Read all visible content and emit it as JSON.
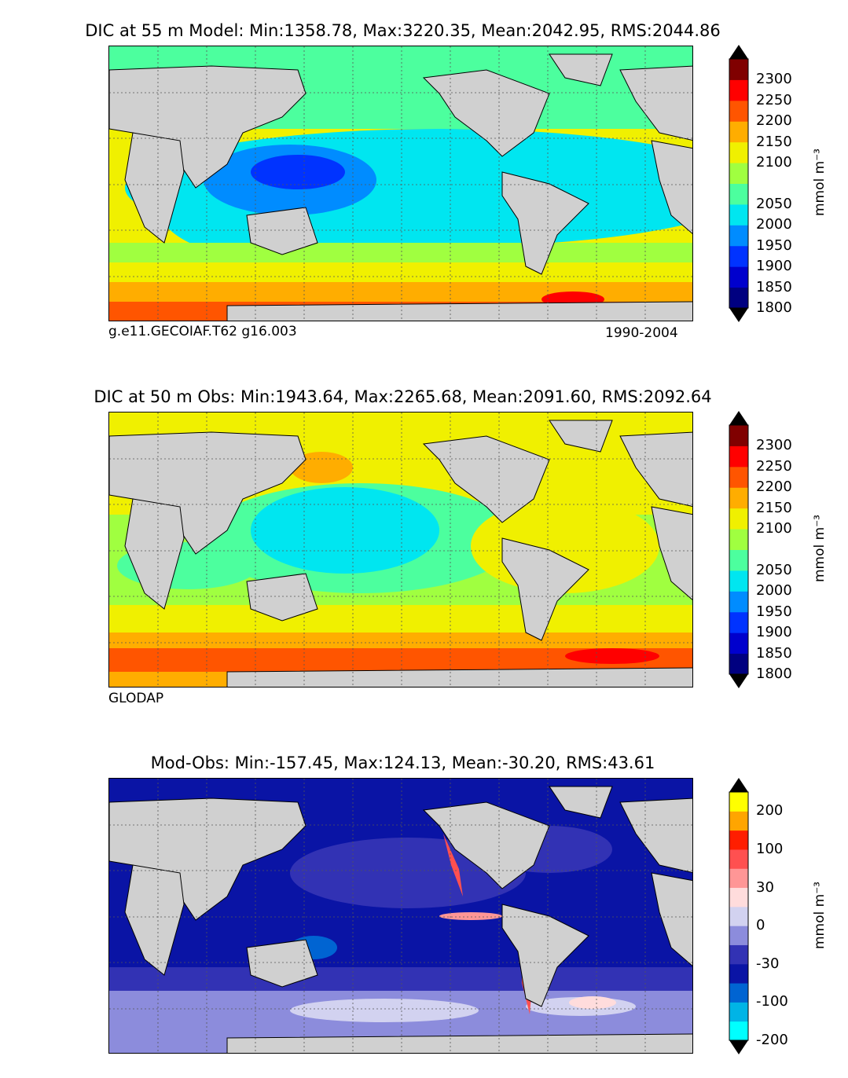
{
  "chart_data": [
    {
      "type": "heatmap",
      "title": "DIC at 55 m Model: Min:1358.78, Max:3220.35, Mean:2042.95, RMS:2044.86",
      "caption_left": "g.e11.GECOIAF.T62 g16.003",
      "caption_right": "1990-2004",
      "colorbar": {
        "ticks": [
          "2300",
          "2250",
          "2200",
          "2150",
          "2100",
          "2050",
          "2000",
          "1950",
          "1900",
          "1850",
          "1800"
        ],
        "colors": [
          "#000080",
          "#0000cd",
          "#0033ff",
          "#008cff",
          "#00e6f0",
          "#4cff9e",
          "#a0ff40",
          "#f0f000",
          "#ffad00",
          "#ff5500",
          "#ff0000",
          "#800000"
        ],
        "unit": "mmol m⁻³",
        "extend": "both"
      }
    },
    {
      "type": "heatmap",
      "title": "DIC at 50 m Obs: Min:1943.64, Max:2265.68, Mean:2091.60, RMS:2092.64",
      "caption_left": "GLODAP",
      "colorbar": {
        "ticks": [
          "2300",
          "2250",
          "2200",
          "2150",
          "2100",
          "2050",
          "2000",
          "1950",
          "1900",
          "1850",
          "1800"
        ],
        "colors": [
          "#000080",
          "#0000cd",
          "#0033ff",
          "#008cff",
          "#00e6f0",
          "#4cff9e",
          "#a0ff40",
          "#f0f000",
          "#ffad00",
          "#ff5500",
          "#ff0000",
          "#800000"
        ],
        "unit": "mmol m⁻³",
        "extend": "both"
      }
    },
    {
      "type": "heatmap",
      "title": "Mod-Obs: Min:-157.45, Max:124.13, Mean:-30.20, RMS:43.61",
      "colorbar": {
        "ticks": [
          "200",
          "100",
          "30",
          "0",
          "-30",
          "-100",
          "-200"
        ],
        "colors": [
          "#00ffff",
          "#00b4e6",
          "#0064d2",
          "#0a14a5",
          "#3232b4",
          "#8c8cdc",
          "#d2d2f0",
          "#ffdcdc",
          "#ff9696",
          "#ff5050",
          "#ff1e00",
          "#ffa500",
          "#ffff00"
        ],
        "unit": "mmol m⁻³",
        "extend": "both"
      }
    }
  ]
}
